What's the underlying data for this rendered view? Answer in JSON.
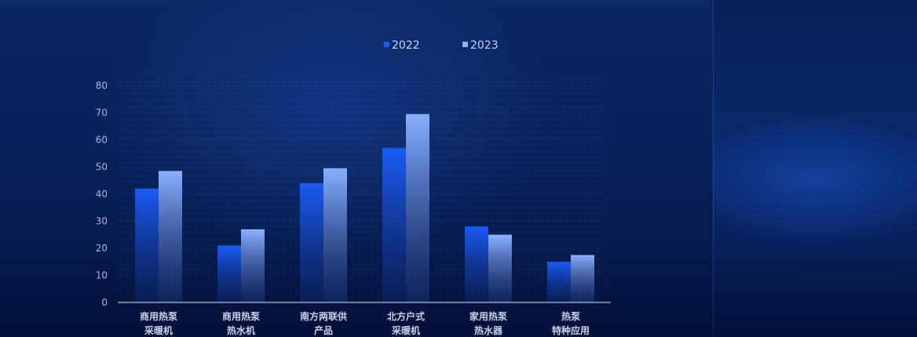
{
  "chart_data": {
    "type": "bar",
    "categories": [
      [
        "商用热泵",
        "采暖机"
      ],
      [
        "商用热泵",
        "热水机"
      ],
      [
        "南方两联供",
        "产品"
      ],
      [
        "北方户式",
        "采暖机"
      ],
      [
        "家用热泵",
        "热水器"
      ],
      [
        "热泵",
        "特种应用"
      ]
    ],
    "series": [
      {
        "name": "2022",
        "values": [
          42,
          21,
          44,
          57,
          28,
          15
        ]
      },
      {
        "name": "2023",
        "values": [
          48.5,
          27,
          49.5,
          69.5,
          25,
          17.5
        ]
      }
    ],
    "ylim": [
      0,
      80
    ],
    "yticks": [
      0,
      10,
      20,
      30,
      40,
      50,
      60,
      70,
      80
    ],
    "legend_position": "top-center",
    "grid": true
  },
  "colors": {
    "series_2022_top": "#1a5cf5",
    "series_2022_bottom": "#0f2c78",
    "series_2023_top": "#8ab1ff",
    "series_2023_bottom": "#243f87",
    "axis": "#d8e2f5"
  }
}
